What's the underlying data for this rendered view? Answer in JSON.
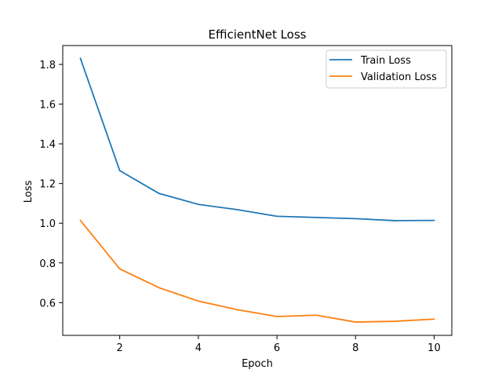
{
  "chart_data": {
    "type": "line",
    "title": "EfficientNet Loss",
    "xlabel": "Epoch",
    "ylabel": "Loss",
    "x": [
      1,
      2,
      3,
      4,
      5,
      6,
      7,
      8,
      9,
      10
    ],
    "xlim": [
      0.55,
      10.45
    ],
    "ylim": [
      0.435,
      1.895
    ],
    "xticks": [
      2,
      4,
      6,
      8,
      10
    ],
    "xtick_labels": [
      "2",
      "4",
      "6",
      "8",
      "10"
    ],
    "yticks": [
      0.6,
      0.8,
      1.0,
      1.2,
      1.4,
      1.6,
      1.8
    ],
    "ytick_labels": [
      "0.6",
      "0.8",
      "1.0",
      "1.2",
      "1.4",
      "1.6",
      "1.8"
    ],
    "grid": false,
    "legend_position": "top-right",
    "series": [
      {
        "name": "Train Loss",
        "color": "#1f77b4",
        "values": [
          1.83,
          1.265,
          1.15,
          1.095,
          1.068,
          1.035,
          1.029,
          1.023,
          1.013,
          1.014
        ]
      },
      {
        "name": "Validation Loss",
        "color": "#ff7f0e",
        "values": [
          1.014,
          0.77,
          0.675,
          0.608,
          0.564,
          0.53,
          0.537,
          0.502,
          0.506,
          0.517
        ]
      }
    ]
  }
}
